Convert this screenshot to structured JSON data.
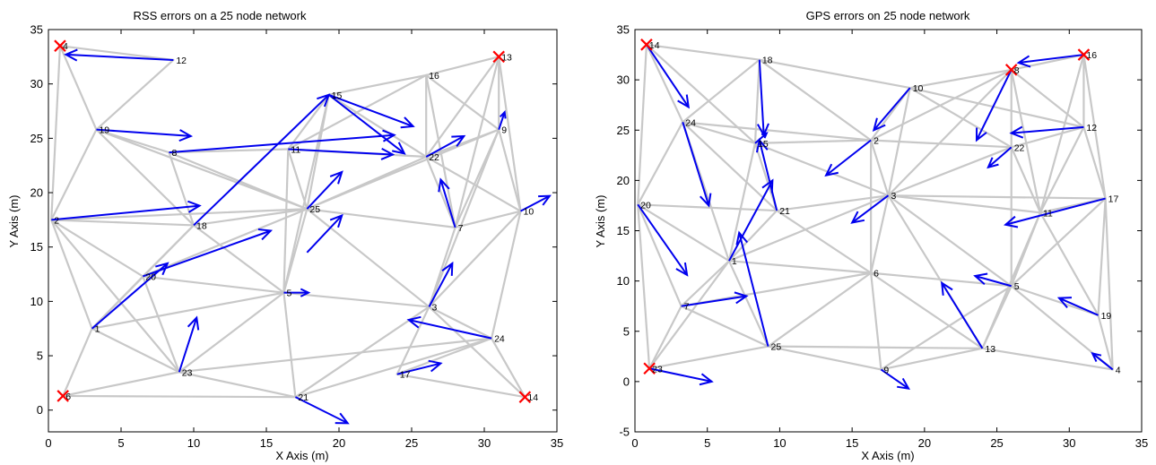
{
  "colors": {
    "edge": "#c8c8c8",
    "arrow": "#0000ee",
    "anchor": "#ff0000",
    "axis": "#000000"
  },
  "chart_data": [
    {
      "type": "network",
      "title": "RSS errors on a 25 node network",
      "xlabel": "X Axis (m)",
      "ylabel": "Y Axis (m)",
      "xlim": [
        0,
        35
      ],
      "ylim": [
        -2,
        35
      ],
      "xticks": [
        0,
        5,
        10,
        15,
        20,
        25,
        30,
        35
      ],
      "yticks": [
        0,
        5,
        10,
        15,
        20,
        25,
        30,
        35
      ],
      "grid": false,
      "nodes": [
        {
          "id": "1",
          "x": 3.0,
          "y": 7.5
        },
        {
          "id": "2",
          "x": 0.2,
          "y": 17.5
        },
        {
          "id": "3",
          "x": 26.2,
          "y": 9.5
        },
        {
          "id": "4",
          "x": 0.8,
          "y": 33.5,
          "anchor": true
        },
        {
          "id": "5",
          "x": 16.2,
          "y": 10.8
        },
        {
          "id": "6",
          "x": 1.0,
          "y": 1.3,
          "anchor": true
        },
        {
          "id": "7",
          "x": 28.0,
          "y": 16.8
        },
        {
          "id": "8",
          "x": 8.3,
          "y": 23.7
        },
        {
          "id": "9",
          "x": 31.0,
          "y": 25.8
        },
        {
          "id": "10",
          "x": 32.5,
          "y": 18.3
        },
        {
          "id": "11",
          "x": 16.5,
          "y": 24.0
        },
        {
          "id": "12",
          "x": 8.6,
          "y": 32.2
        },
        {
          "id": "13",
          "x": 31.0,
          "y": 32.5,
          "anchor": true
        },
        {
          "id": "14",
          "x": 32.8,
          "y": 1.2,
          "anchor": true
        },
        {
          "id": "15",
          "x": 19.3,
          "y": 29.0
        },
        {
          "id": "16",
          "x": 26.0,
          "y": 30.8
        },
        {
          "id": "17",
          "x": 24.0,
          "y": 3.3
        },
        {
          "id": "18",
          "x": 10.0,
          "y": 17.0
        },
        {
          "id": "19",
          "x": 3.3,
          "y": 25.8
        },
        {
          "id": "20",
          "x": 6.5,
          "y": 12.3
        },
        {
          "id": "21",
          "x": 17.0,
          "y": 1.2
        },
        {
          "id": "22",
          "x": 26.0,
          "y": 23.3
        },
        {
          "id": "23",
          "x": 9.0,
          "y": 3.5
        },
        {
          "id": "24",
          "x": 30.5,
          "y": 6.6
        },
        {
          "id": "25",
          "x": 17.8,
          "y": 18.5
        }
      ],
      "edges": [
        [
          "4",
          "12"
        ],
        [
          "4",
          "19"
        ],
        [
          "12",
          "19"
        ],
        [
          "4",
          "2"
        ],
        [
          "19",
          "2"
        ],
        [
          "19",
          "8"
        ],
        [
          "19",
          "25"
        ],
        [
          "19",
          "18"
        ],
        [
          "2",
          "18"
        ],
        [
          "2",
          "25"
        ],
        [
          "2",
          "1"
        ],
        [
          "2",
          "20"
        ],
        [
          "2",
          "23"
        ],
        [
          "8",
          "25"
        ],
        [
          "8",
          "11"
        ],
        [
          "8",
          "18"
        ],
        [
          "15",
          "11"
        ],
        [
          "15",
          "16"
        ],
        [
          "15",
          "25"
        ],
        [
          "15",
          "22"
        ],
        [
          "15",
          "5"
        ],
        [
          "11",
          "25"
        ],
        [
          "11",
          "5"
        ],
        [
          "11",
          "22"
        ],
        [
          "11",
          "16"
        ],
        [
          "16",
          "13"
        ],
        [
          "16",
          "22"
        ],
        [
          "16",
          "9"
        ],
        [
          "16",
          "7"
        ],
        [
          "13",
          "9"
        ],
        [
          "13",
          "22"
        ],
        [
          "13",
          "10"
        ],
        [
          "13",
          "7"
        ],
        [
          "9",
          "22"
        ],
        [
          "9",
          "7"
        ],
        [
          "9",
          "10"
        ],
        [
          "9",
          "3"
        ],
        [
          "9",
          "25"
        ],
        [
          "22",
          "25"
        ],
        [
          "22",
          "7"
        ],
        [
          "22",
          "10"
        ],
        [
          "7",
          "3"
        ],
        [
          "7",
          "10"
        ],
        [
          "7",
          "25"
        ],
        [
          "10",
          "3"
        ],
        [
          "10",
          "24"
        ],
        [
          "25",
          "5"
        ],
        [
          "25",
          "3"
        ],
        [
          "25",
          "18"
        ],
        [
          "25",
          "20"
        ],
        [
          "18",
          "20"
        ],
        [
          "18",
          "5"
        ],
        [
          "20",
          "1"
        ],
        [
          "20",
          "23"
        ],
        [
          "20",
          "5"
        ],
        [
          "1",
          "23"
        ],
        [
          "1",
          "6"
        ],
        [
          "1",
          "5"
        ],
        [
          "5",
          "23"
        ],
        [
          "5",
          "21"
        ],
        [
          "5",
          "3"
        ],
        [
          "23",
          "6"
        ],
        [
          "23",
          "21"
        ],
        [
          "23",
          "24"
        ],
        [
          "21",
          "3"
        ],
        [
          "21",
          "24"
        ],
        [
          "3",
          "24"
        ],
        [
          "3",
          "14"
        ],
        [
          "3",
          "17"
        ],
        [
          "24",
          "14"
        ],
        [
          "24",
          "17"
        ],
        [
          "17",
          "14"
        ],
        [
          "6",
          "21"
        ],
        [
          "1",
          "18"
        ]
      ],
      "arrows": [
        {
          "x": 8.6,
          "y": 32.2,
          "dx": -7.4,
          "dy": 0.5
        },
        {
          "x": 3.3,
          "y": 25.8,
          "dx": 6.5,
          "dy": -0.6
        },
        {
          "x": 8.3,
          "y": 23.7,
          "dx": 15.5,
          "dy": 1.6
        },
        {
          "x": 0.2,
          "y": 17.5,
          "dx": 10.2,
          "dy": 1.3
        },
        {
          "x": 10.0,
          "y": 17.0,
          "dx": 9.3,
          "dy": 12.0
        },
        {
          "x": 6.5,
          "y": 12.3,
          "dx": 8.8,
          "dy": 4.2
        },
        {
          "x": 3.0,
          "y": 7.5,
          "dx": 5.2,
          "dy": 6.0
        },
        {
          "x": 9.0,
          "y": 3.5,
          "dx": 1.2,
          "dy": 5.0
        },
        {
          "x": 17.0,
          "y": 1.2,
          "dx": 3.6,
          "dy": -2.4
        },
        {
          "x": 16.2,
          "y": 10.8,
          "dx": 1.7,
          "dy": 0
        },
        {
          "x": 17.8,
          "y": 18.5,
          "dx": 2.4,
          "dy": 3.4
        },
        {
          "x": 17.8,
          "y": 14.5,
          "dx": 2.4,
          "dy": 3.4
        },
        {
          "x": 16.5,
          "y": 24.0,
          "dx": 7.2,
          "dy": -0.5
        },
        {
          "x": 19.3,
          "y": 29.0,
          "dx": 5.8,
          "dy": -2.9
        },
        {
          "x": 19.3,
          "y": 29.0,
          "dx": 5.2,
          "dy": -5.4
        },
        {
          "x": 26.0,
          "y": 23.3,
          "dx": 2.6,
          "dy": 1.9
        },
        {
          "x": 28.0,
          "y": 16.8,
          "dx": -1.0,
          "dy": 4.4
        },
        {
          "x": 31.0,
          "y": 25.8,
          "dx": 0.4,
          "dy": 1.6
        },
        {
          "x": 32.5,
          "y": 18.3,
          "dx": 2.0,
          "dy": 1.4
        },
        {
          "x": 26.2,
          "y": 9.5,
          "dx": 1.6,
          "dy": 4.0
        },
        {
          "x": 30.5,
          "y": 6.6,
          "dx": -5.7,
          "dy": 1.7
        },
        {
          "x": 24.0,
          "y": 3.3,
          "dx": 3.0,
          "dy": 1.0
        }
      ]
    },
    {
      "type": "network",
      "title": "GPS errors on 25 node network",
      "xlabel": "X Axis (m)",
      "ylabel": "Y Axis (m)",
      "xlim": [
        0,
        35
      ],
      "ylim": [
        -5,
        35
      ],
      "xticks": [
        0,
        5,
        10,
        15,
        20,
        25,
        30,
        35
      ],
      "yticks": [
        -5,
        0,
        5,
        10,
        15,
        20,
        25,
        30,
        35
      ],
      "grid": false,
      "nodes": [
        {
          "id": "1",
          "x": 6.5,
          "y": 12.0
        },
        {
          "id": "2",
          "x": 16.3,
          "y": 24.0
        },
        {
          "id": "3",
          "x": 17.5,
          "y": 18.5
        },
        {
          "id": "4",
          "x": 33.0,
          "y": 1.2
        },
        {
          "id": "5",
          "x": 26.0,
          "y": 9.5
        },
        {
          "id": "6",
          "x": 16.3,
          "y": 10.8
        },
        {
          "id": "7",
          "x": 3.2,
          "y": 7.5
        },
        {
          "id": "8",
          "x": 26.0,
          "y": 31.0,
          "anchor": true
        },
        {
          "id": "9",
          "x": 17.0,
          "y": 1.2
        },
        {
          "id": "10",
          "x": 19.0,
          "y": 29.2
        },
        {
          "id": "11",
          "x": 28.0,
          "y": 16.8
        },
        {
          "id": "12",
          "x": 31.0,
          "y": 25.3
        },
        {
          "id": "13",
          "x": 24.0,
          "y": 3.3
        },
        {
          "id": "14",
          "x": 0.8,
          "y": 33.5,
          "anchor": true
        },
        {
          "id": "15",
          "x": 8.3,
          "y": 23.7
        },
        {
          "id": "16",
          "x": 31.0,
          "y": 32.5,
          "anchor": true
        },
        {
          "id": "17",
          "x": 32.5,
          "y": 18.2
        },
        {
          "id": "18",
          "x": 8.6,
          "y": 32.0
        },
        {
          "id": "19",
          "x": 32.0,
          "y": 6.6
        },
        {
          "id": "20",
          "x": 0.2,
          "y": 17.6
        },
        {
          "id": "21",
          "x": 9.8,
          "y": 17.0
        },
        {
          "id": "22",
          "x": 26.0,
          "y": 23.3
        },
        {
          "id": "23",
          "x": 1.0,
          "y": 1.3,
          "anchor": true
        },
        {
          "id": "24",
          "x": 3.3,
          "y": 25.8
        },
        {
          "id": "25",
          "x": 9.2,
          "y": 3.5
        }
      ],
      "edges": [
        [
          "14",
          "18"
        ],
        [
          "14",
          "24"
        ],
        [
          "14",
          "15"
        ],
        [
          "14",
          "20"
        ],
        [
          "18",
          "10"
        ],
        [
          "18",
          "15"
        ],
        [
          "18",
          "24"
        ],
        [
          "18",
          "2"
        ],
        [
          "24",
          "15"
        ],
        [
          "24",
          "20"
        ],
        [
          "24",
          "21"
        ],
        [
          "24",
          "2"
        ],
        [
          "24",
          "1"
        ],
        [
          "15",
          "2"
        ],
        [
          "15",
          "21"
        ],
        [
          "15",
          "1"
        ],
        [
          "15",
          "3"
        ],
        [
          "20",
          "21"
        ],
        [
          "20",
          "1"
        ],
        [
          "20",
          "7"
        ],
        [
          "20",
          "23"
        ],
        [
          "21",
          "3"
        ],
        [
          "21",
          "1"
        ],
        [
          "21",
          "6"
        ],
        [
          "2",
          "10"
        ],
        [
          "2",
          "3"
        ],
        [
          "2",
          "22"
        ],
        [
          "2",
          "8"
        ],
        [
          "2",
          "6"
        ],
        [
          "10",
          "8"
        ],
        [
          "10",
          "3"
        ],
        [
          "10",
          "22"
        ],
        [
          "10",
          "12"
        ],
        [
          "8",
          "16"
        ],
        [
          "8",
          "12"
        ],
        [
          "8",
          "22"
        ],
        [
          "8",
          "11"
        ],
        [
          "8",
          "3"
        ],
        [
          "16",
          "12"
        ],
        [
          "16",
          "17"
        ],
        [
          "16",
          "11"
        ],
        [
          "12",
          "22"
        ],
        [
          "12",
          "17"
        ],
        [
          "12",
          "11"
        ],
        [
          "22",
          "3"
        ],
        [
          "22",
          "11"
        ],
        [
          "22",
          "5"
        ],
        [
          "3",
          "11"
        ],
        [
          "3",
          "17"
        ],
        [
          "3",
          "6"
        ],
        [
          "3",
          "13"
        ],
        [
          "3",
          "5"
        ],
        [
          "3",
          "1"
        ],
        [
          "11",
          "17"
        ],
        [
          "11",
          "5"
        ],
        [
          "11",
          "13"
        ],
        [
          "11",
          "19"
        ],
        [
          "17",
          "5"
        ],
        [
          "17",
          "19"
        ],
        [
          "17",
          "4"
        ],
        [
          "6",
          "1"
        ],
        [
          "6",
          "7"
        ],
        [
          "6",
          "25"
        ],
        [
          "6",
          "9"
        ],
        [
          "6",
          "5"
        ],
        [
          "6",
          "13"
        ],
        [
          "1",
          "7"
        ],
        [
          "1",
          "25"
        ],
        [
          "1",
          "23"
        ],
        [
          "5",
          "13"
        ],
        [
          "5",
          "19"
        ],
        [
          "5",
          "9"
        ],
        [
          "5",
          "4"
        ],
        [
          "13",
          "9"
        ],
        [
          "13",
          "25"
        ],
        [
          "13",
          "4"
        ],
        [
          "19",
          "4"
        ],
        [
          "25",
          "23"
        ],
        [
          "25",
          "7"
        ],
        [
          "7",
          "23"
        ],
        [
          "25",
          "9"
        ]
      ],
      "arrows": [
        {
          "x": 0.8,
          "y": 33.5,
          "dx": 2.9,
          "dy": -6.2
        },
        {
          "x": 8.6,
          "y": 32.0,
          "dx": 0.3,
          "dy": -7.5
        },
        {
          "x": 3.3,
          "y": 25.8,
          "dx": 1.8,
          "dy": -8.3
        },
        {
          "x": 8.3,
          "y": 23.7,
          "dx": 0.8,
          "dy": 1.0
        },
        {
          "x": 9.8,
          "y": 17.0,
          "dx": -1.2,
          "dy": 7.0
        },
        {
          "x": 0.2,
          "y": 17.6,
          "dx": 3.4,
          "dy": -7.0
        },
        {
          "x": 6.5,
          "y": 12.0,
          "dx": 3.0,
          "dy": 8.0
        },
        {
          "x": 9.2,
          "y": 3.5,
          "dx": -2.0,
          "dy": 11.3
        },
        {
          "x": 3.2,
          "y": 7.5,
          "dx": 4.5,
          "dy": 1.0
        },
        {
          "x": 1.0,
          "y": 1.3,
          "dx": 4.3,
          "dy": -1.3
        },
        {
          "x": 16.3,
          "y": 24.0,
          "dx": -3.1,
          "dy": -3.5
        },
        {
          "x": 19.0,
          "y": 29.2,
          "dx": -2.5,
          "dy": -4.2
        },
        {
          "x": 17.5,
          "y": 18.5,
          "dx": -2.5,
          "dy": -2.7
        },
        {
          "x": 17.0,
          "y": 1.2,
          "dx": 1.9,
          "dy": -1.9
        },
        {
          "x": 24.0,
          "y": 3.3,
          "dx": -2.8,
          "dy": 6.5
        },
        {
          "x": 26.0,
          "y": 9.5,
          "dx": -2.5,
          "dy": 1.0
        },
        {
          "x": 26.0,
          "y": 31.0,
          "dx": -2.4,
          "dy": -7.0
        },
        {
          "x": 31.0,
          "y": 32.5,
          "dx": -4.5,
          "dy": -0.8
        },
        {
          "x": 31.0,
          "y": 25.3,
          "dx": -5.0,
          "dy": -0.6
        },
        {
          "x": 26.0,
          "y": 23.3,
          "dx": -1.6,
          "dy": -2.0
        },
        {
          "x": 32.5,
          "y": 18.2,
          "dx": -6.9,
          "dy": -2.6
        },
        {
          "x": 32.0,
          "y": 6.6,
          "dx": -2.7,
          "dy": 1.7
        },
        {
          "x": 33.0,
          "y": 1.2,
          "dx": -1.4,
          "dy": 1.6
        }
      ]
    }
  ]
}
